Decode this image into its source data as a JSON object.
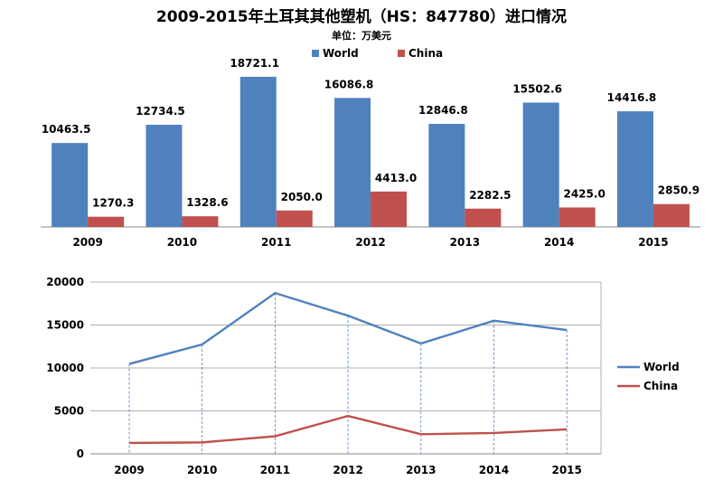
{
  "title": "2009-2015年土耳其其他塑机（HS：847780）进口情况",
  "unit": "单位：万美元",
  "colors": {
    "world": "#4F81BD",
    "china": "#C0504D",
    "grid": "#B0B0B0",
    "guide": "#4F81BD"
  },
  "chart_data": [
    {
      "type": "bar",
      "categories": [
        "2009",
        "2010",
        "2011",
        "2012",
        "2013",
        "2014",
        "2015"
      ],
      "series": [
        {
          "name": "World",
          "values": [
            10463.5,
            12734.5,
            18721.1,
            16086.8,
            12846.8,
            15502.6,
            14416.8
          ]
        },
        {
          "name": "China",
          "values": [
            1270.3,
            1328.6,
            2050.0,
            4413.0,
            2282.5,
            2425.0,
            2850.9
          ]
        }
      ],
      "data_labels": {
        "World": [
          "10463.5",
          "12734.5",
          "18721.1",
          "16086.8",
          "12846.8",
          "15502.6",
          "14416.8"
        ],
        "China": [
          "1270.3",
          "1328.6",
          "2050.0",
          "4413.0",
          "2282.5",
          "2425.0",
          "2850.9"
        ]
      },
      "legend": "top-center",
      "y_axis_visible": false
    },
    {
      "type": "line",
      "categories": [
        "2009",
        "2010",
        "2011",
        "2012",
        "2013",
        "2014",
        "2015"
      ],
      "series": [
        {
          "name": "World",
          "values": [
            10463.5,
            12734.5,
            18721.1,
            16086.8,
            12846.8,
            15502.6,
            14416.8
          ]
        },
        {
          "name": "China",
          "values": [
            1270.3,
            1328.6,
            2050.0,
            4413.0,
            2282.5,
            2425.0,
            2850.9
          ]
        }
      ],
      "ylim": [
        0,
        20000
      ],
      "yticks": [
        "0",
        "5000",
        "10000",
        "15000",
        "20000"
      ],
      "grid": true,
      "drop_lines": true,
      "legend": "right"
    }
  ]
}
